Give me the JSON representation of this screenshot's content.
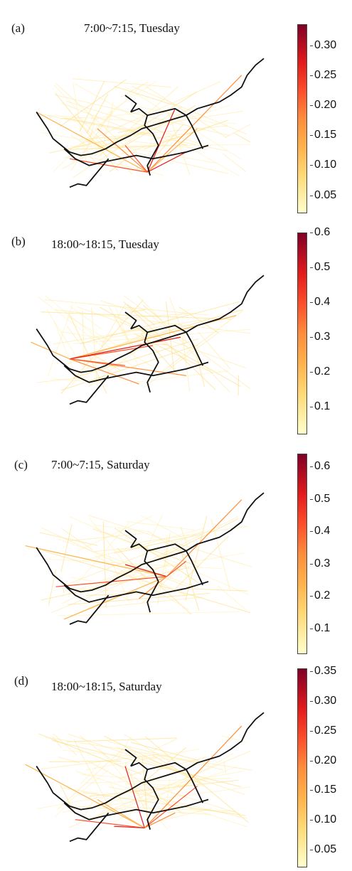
{
  "panels": [
    {
      "label": "(a)",
      "title": "7:00~7:15,  Tuesday",
      "colorbar": {
        "ticks": [
          "0.30",
          "0.25",
          "0.20",
          "0.15",
          "0.10",
          "0.05"
        ],
        "min": 0.02,
        "max": 0.335
      }
    },
    {
      "label": "(b)",
      "title": "18:00~18:15, Tuesday",
      "colorbar": {
        "ticks": [
          "0.6",
          "0.5",
          "0.4",
          "0.3",
          "0.2",
          "0.1"
        ],
        "min": 0.02,
        "max": 0.6
      }
    },
    {
      "label": "(c)",
      "title": "7:00~7:15, Saturday",
      "colorbar": {
        "ticks": [
          "0.6",
          "0.5",
          "0.4",
          "0.3",
          "0.2",
          "0.1"
        ],
        "min": 0.02,
        "max": 0.64
      }
    },
    {
      "label": "(d)",
      "title": "18:00~18:15, Saturday",
      "colorbar": {
        "ticks": [
          "0.35",
          "0.30",
          "0.25",
          "0.20",
          "0.15",
          "0.10",
          "0.05"
        ],
        "min": 0.02,
        "max": 0.355
      }
    }
  ],
  "colormap": {
    "low": "#ffffcc",
    "mid": "#fd8d3c",
    "high": "#800026"
  }
}
